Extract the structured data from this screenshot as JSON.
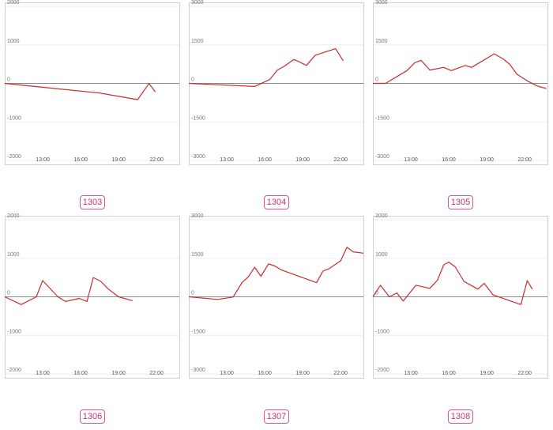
{
  "chart_data": [
    {
      "type": "line",
      "label": "1303",
      "xlim": [
        10,
        23.8
      ],
      "ylim": [
        -2000,
        2000
      ],
      "yticks": [
        2000,
        1000,
        0,
        -1000,
        -2000
      ],
      "xticks": [
        13,
        16,
        19,
        22
      ],
      "xtick_labels": [
        "13:00",
        "16:00",
        "19:00",
        "22:00"
      ],
      "x": [
        10,
        13,
        17.5,
        20.5,
        21.4,
        21.9
      ],
      "y": [
        0,
        -100,
        -250,
        -420,
        -5,
        -220
      ],
      "color": "#cc2a2a"
    },
    {
      "type": "line",
      "label": "1304",
      "xlim": [
        10,
        23.8
      ],
      "ylim": [
        -3000,
        3000
      ],
      "yticks": [
        3000,
        1500,
        0,
        -1500,
        -3000
      ],
      "xticks": [
        13,
        16,
        19,
        22
      ],
      "xtick_labels": [
        "13:00",
        "16:00",
        "19:00",
        "22:00"
      ],
      "x": [
        10,
        15.2,
        16.4,
        17,
        17.5,
        18.3,
        18.7,
        19.3,
        20,
        21.6,
        22.2
      ],
      "y": [
        0,
        -120,
        150,
        520,
        650,
        930,
        850,
        700,
        1100,
        1350,
        880
      ],
      "color": "#cc2a2a"
    },
    {
      "type": "line",
      "label": "1305",
      "xlim": [
        10,
        23.8
      ],
      "ylim": [
        -3000,
        3000
      ],
      "yticks": [
        3000,
        1500,
        0,
        -1500,
        -3000
      ],
      "xticks": [
        13,
        16,
        19,
        22
      ],
      "xtick_labels": [
        "13:00",
        "16:00",
        "19:00",
        "22:00"
      ],
      "x": [
        10,
        11,
        12.7,
        13.3,
        13.8,
        14.5,
        15.6,
        16.2,
        17.3,
        17.8,
        19.6,
        20.3,
        20.8,
        21.4,
        22.2,
        23,
        23.7
      ],
      "y": [
        0,
        0,
        500,
        800,
        900,
        520,
        620,
        500,
        700,
        620,
        1150,
        950,
        750,
        350,
        100,
        -100,
        -200
      ],
      "color": "#cc2a2a"
    },
    {
      "type": "line",
      "label": "1306",
      "xlim": [
        10,
        23.8
      ],
      "ylim": [
        -2000,
        2000
      ],
      "yticks": [
        2000,
        1000,
        0,
        -1000,
        -2000
      ],
      "xticks": [
        13,
        16,
        19,
        22
      ],
      "xtick_labels": [
        "13:00",
        "16:00",
        "19:00",
        "22:00"
      ],
      "x": [
        10,
        11.3,
        12.5,
        13,
        14.2,
        14.8,
        15.9,
        16.5,
        17,
        17.6,
        18.2,
        19,
        20.1
      ],
      "y": [
        0,
        -200,
        0,
        420,
        0,
        -120,
        -40,
        -120,
        500,
        400,
        200,
        0,
        -100
      ],
      "color": "#cc2a2a"
    },
    {
      "type": "line",
      "label": "1307",
      "xlim": [
        10,
        23.8
      ],
      "ylim": [
        -3000,
        3000
      ],
      "yticks": [
        3000,
        1500,
        0,
        -1500,
        -3000
      ],
      "xticks": [
        13,
        16,
        19,
        22
      ],
      "xtick_labels": [
        "13:00",
        "16:00",
        "19:00",
        "22:00"
      ],
      "x": [
        10,
        12.3,
        13.5,
        14.2,
        14.7,
        15.2,
        15.7,
        16.3,
        16.8,
        17.3,
        20.1,
        20.6,
        21.1,
        22,
        22.5,
        23,
        23.8
      ],
      "y": [
        0,
        -100,
        -10,
        550,
        780,
        1150,
        800,
        1280,
        1200,
        1050,
        550,
        1000,
        1100,
        1400,
        1930,
        1750,
        1700
      ],
      "color": "#cc2a2a"
    },
    {
      "type": "line",
      "label": "1308",
      "xlim": [
        10,
        23.8
      ],
      "ylim": [
        -2000,
        2000
      ],
      "yticks": [
        2000,
        1000,
        0,
        -1000,
        -2000
      ],
      "xticks": [
        13,
        16,
        19,
        22
      ],
      "xtick_labels": [
        "13:00",
        "16:00",
        "19:00",
        "22:00"
      ],
      "x": [
        10,
        10.6,
        11.3,
        11.9,
        12.4,
        13.4,
        14.5,
        15.1,
        15.6,
        16,
        16.5,
        17.2,
        18.3,
        18.8,
        19.5,
        21.7,
        22.2,
        22.6
      ],
      "y": [
        0,
        300,
        0,
        100,
        -110,
        300,
        220,
        430,
        830,
        900,
        780,
        400,
        200,
        350,
        50,
        -200,
        420,
        200
      ],
      "color": "#cc2a2a"
    }
  ],
  "badges": [
    "1303",
    "1304",
    "1305",
    "1306",
    "1307",
    "1308"
  ]
}
